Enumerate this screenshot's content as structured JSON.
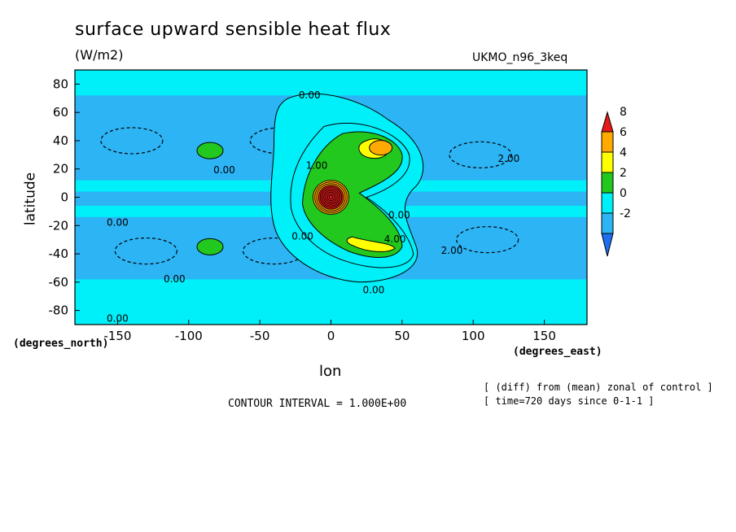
{
  "chart_data": {
    "type": "heatmap",
    "title": "surface upward sensible heat flux",
    "units": "(W/m2)",
    "dataset": "UKMO_n96_3keq",
    "xlabel": "lon",
    "ylabel": "latitude",
    "xunit": "(degrees_east)",
    "yunit": "(degrees_north)",
    "xlim": [
      -180,
      180
    ],
    "ylim": [
      -90,
      90
    ],
    "xticks": [
      -150,
      -100,
      -50,
      0,
      50,
      100,
      150
    ],
    "yticks": [
      80,
      60,
      40,
      20,
      0,
      -20,
      -40,
      -60,
      -80
    ],
    "contour_interval_label": "CONTOUR INTERVAL = 1.000E+00",
    "notes": [
      "[ (diff) from (mean) zonal of control ]",
      "[ time=720 days since 0-1-1 ]"
    ],
    "colorbar": {
      "labels": [
        "8",
        "6",
        "4",
        "2",
        "0",
        "-2"
      ],
      "levels": [
        -4,
        -2,
        0,
        2,
        4,
        6,
        8,
        10
      ],
      "colors": [
        "#1e6ef0",
        "#2db4f5",
        "#00f0fa",
        "#22c81e",
        "#ffff00",
        "#ffaa00",
        "#e61a1a"
      ]
    },
    "contour_labels": [
      {
        "text": "0.00",
        "lon": -15,
        "lat": 70
      },
      {
        "text": "0.00",
        "lon": -75,
        "lat": 17
      },
      {
        "text": "0.00",
        "lon": -150,
        "lat": -20
      },
      {
        "text": "0.00",
        "lon": -20,
        "lat": -30
      },
      {
        "text": "0.00",
        "lon": -110,
        "lat": -60
      },
      {
        "text": "0.00",
        "lon": -150,
        "lat": -88
      },
      {
        "text": "0.00",
        "lon": 30,
        "lat": -68
      },
      {
        "text": "0.00",
        "lon": 48,
        "lat": -15
      },
      {
        "text": "1.00",
        "lon": -10,
        "lat": 20
      },
      {
        "text": "2.00",
        "lon": 125,
        "lat": 25
      },
      {
        "text": "2.00",
        "lon": 85,
        "lat": -40
      },
      {
        "text": "4.00",
        "lon": 45,
        "lat": -32
      }
    ],
    "features": [
      {
        "kind": "positive",
        "level": 2,
        "lon": -85,
        "lat": 33
      },
      {
        "kind": "positive",
        "level": 2,
        "lon": -85,
        "lat": -35
      },
      {
        "kind": "positive",
        "level": 6,
        "lon": 35,
        "lat": 35
      },
      {
        "kind": "positive",
        "level": 10,
        "lon": 0,
        "lat": 0
      },
      {
        "kind": "negative",
        "level": -2,
        "lon": -140,
        "lat": 40
      },
      {
        "kind": "negative",
        "level": -2,
        "lon": -35,
        "lat": 40
      },
      {
        "kind": "negative",
        "level": -2,
        "lon": 105,
        "lat": 30
      },
      {
        "kind": "negative",
        "level": -2,
        "lon": -130,
        "lat": -38
      },
      {
        "kind": "negative",
        "level": -2,
        "lon": -40,
        "lat": -38
      },
      {
        "kind": "negative",
        "level": -2,
        "lon": 110,
        "lat": -30
      }
    ],
    "grid": false
  }
}
